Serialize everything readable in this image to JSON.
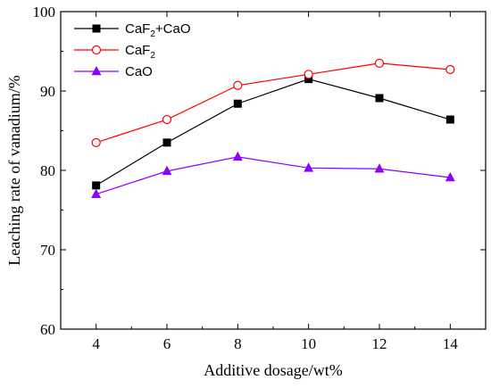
{
  "chart_data": {
    "type": "line",
    "title": "",
    "xlabel": "Additive dosage/wt%",
    "ylabel": "Leaching rate of vanadium/%",
    "x": [
      4,
      6,
      8,
      10,
      12,
      14
    ],
    "xlim": [
      3,
      15
    ],
    "ylim": [
      60,
      100
    ],
    "xticks": [
      "4",
      "6",
      "8",
      "10",
      "12",
      "14"
    ],
    "yticks": [
      "60",
      "70",
      "80",
      "90",
      "100"
    ],
    "grid": false,
    "legend_position": "top-left",
    "series": [
      {
        "name": "CaF2+CaO",
        "name_main": "CaF",
        "name_sub": "2",
        "name_rest": "+CaO",
        "color": "#000000",
        "marker": "square-filled",
        "values": [
          78.1,
          83.5,
          88.4,
          91.5,
          89.1,
          86.4
        ]
      },
      {
        "name": "CaF2",
        "name_main": "CaF",
        "name_sub": "2",
        "name_rest": "",
        "color": "#ff0000",
        "marker": "circle-open",
        "values": [
          83.5,
          86.4,
          90.7,
          92.1,
          93.5,
          92.7
        ]
      },
      {
        "name": "CaO",
        "name_main": "CaO",
        "name_sub": "",
        "name_rest": "",
        "color": "#8b00ff",
        "marker": "triangle-filled",
        "values": [
          77.0,
          79.9,
          81.7,
          80.3,
          80.2,
          79.1
        ]
      }
    ]
  }
}
